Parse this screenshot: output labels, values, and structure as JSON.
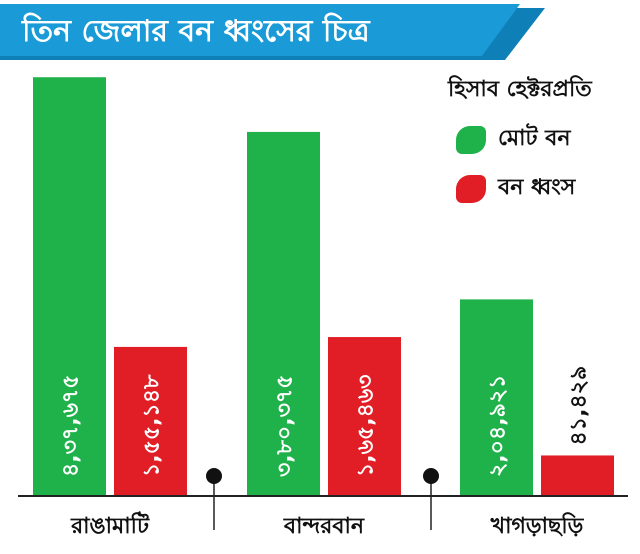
{
  "title": "তিন জেলার বন ধ্বংসের চিত্র",
  "colors": {
    "banner": "#1a9ad6",
    "banner_dark": "#0f7fb8",
    "total_forest": "#1fb24a",
    "forest_destroyed": "#e11d26",
    "axis": "#222222"
  },
  "legend": {
    "title": "হিসাব হেক্টরপ্রতি",
    "items": [
      {
        "label": "মোট বন",
        "color": "#1fb24a"
      },
      {
        "label": "বন ধ্বংস",
        "color": "#e11d26"
      }
    ]
  },
  "chart_data": {
    "type": "bar",
    "categories": [
      "রাঙামাটি",
      "বান্দরবান",
      "খাগড়াছড়ি"
    ],
    "series": [
      {
        "name": "মোট বন",
        "values": [
          437675,
          380375,
          204921
        ],
        "labels": [
          "৪,৩৭,৬৭৫",
          "৩,৮০,৩৭৫",
          "২,০৪,৯২১"
        ]
      },
      {
        "name": "বন ধ্বংস",
        "values": [
          155148,
          165463,
          41429
        ],
        "labels": [
          "১,৫৫,১৪৮",
          "১,৬৫,৪৬৩",
          "৪১,৪২৯"
        ]
      }
    ],
    "ylim": [
      0,
      440000
    ]
  }
}
